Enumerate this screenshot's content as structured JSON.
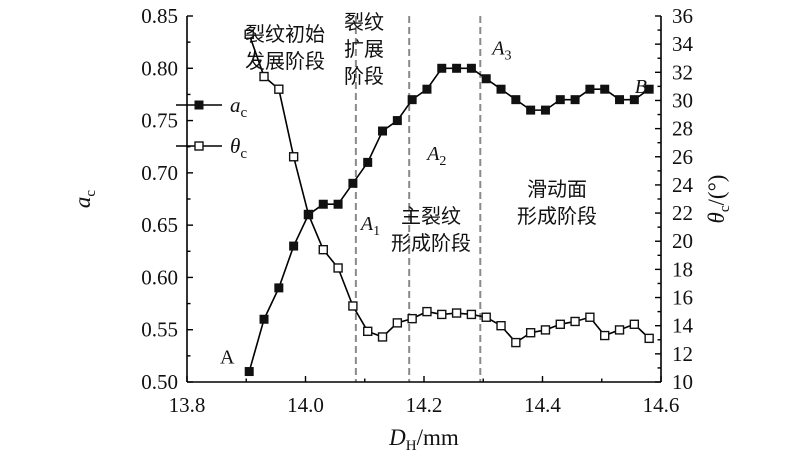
{
  "chart_data": {
    "type": "line",
    "xlabel": {
      "main": "D",
      "sub": "H",
      "unit": "/mm"
    },
    "ylabel_left": {
      "main": "a",
      "sub": "c"
    },
    "ylabel_right": {
      "main": "θ",
      "sub": "c",
      "unit": "/(°)"
    },
    "xlim": [
      13.8,
      14.6
    ],
    "ylim_left": [
      0.5,
      0.85
    ],
    "ylim_right": [
      10,
      36
    ],
    "x_ticks": [
      "13.8",
      "14.0",
      "14.2",
      "14.4",
      "14.6"
    ],
    "y_left_ticks": [
      "0.50",
      "0.55",
      "0.60",
      "0.65",
      "0.70",
      "0.75",
      "0.80",
      "0.85"
    ],
    "y_right_ticks": [
      "10",
      "12",
      "14",
      "16",
      "18",
      "20",
      "22",
      "24",
      "26",
      "28",
      "30",
      "32",
      "34",
      "36"
    ],
    "series": [
      {
        "name": "a",
        "sub": "c",
        "axis": "left",
        "marker": "filled-square",
        "x": [
          13.905,
          13.93,
          13.955,
          13.98,
          14.005,
          14.03,
          14.055,
          14.08,
          14.105,
          14.13,
          14.155,
          14.18,
          14.205,
          14.23,
          14.255,
          14.28,
          14.305,
          14.33,
          14.355,
          14.38,
          14.405,
          14.43,
          14.455,
          14.48,
          14.505,
          14.53,
          14.555,
          14.58
        ],
        "values": [
          0.51,
          0.56,
          0.59,
          0.63,
          0.66,
          0.67,
          0.67,
          0.69,
          0.71,
          0.74,
          0.75,
          0.77,
          0.78,
          0.8,
          0.8,
          0.8,
          0.79,
          0.78,
          0.77,
          0.76,
          0.76,
          0.77,
          0.77,
          0.78,
          0.78,
          0.77,
          0.77,
          0.78
        ]
      },
      {
        "name": "θ",
        "sub": "c",
        "axis": "right",
        "marker": "open-square",
        "x": [
          13.905,
          13.93,
          13.955,
          13.98,
          14.005,
          14.03,
          14.055,
          14.08,
          14.105,
          14.13,
          14.155,
          14.18,
          14.205,
          14.23,
          14.255,
          14.28,
          14.305,
          14.33,
          14.355,
          14.38,
          14.405,
          14.43,
          14.455,
          14.48,
          14.505,
          14.53,
          14.555,
          14.58
        ],
        "values": [
          34.7,
          31.7,
          30.8,
          26.0,
          21.9,
          19.4,
          18.1,
          15.4,
          13.6,
          13.2,
          14.2,
          14.5,
          15.0,
          14.8,
          14.9,
          14.8,
          14.6,
          14.0,
          12.8,
          13.5,
          13.7,
          14.1,
          14.3,
          14.6,
          13.3,
          13.7,
          14.1,
          13.1
        ]
      }
    ],
    "vlines": [
      14.085,
      14.175,
      14.295
    ],
    "point_labels": [
      {
        "main": "A",
        "sub": "",
        "x": 13.905,
        "y": 0.51
      },
      {
        "main": "A",
        "sub": "1",
        "x": 14.08,
        "y": 0.67
      },
      {
        "main": "A",
        "sub": "2",
        "x": 14.175,
        "y": 0.74
      },
      {
        "main": "A",
        "sub": "3",
        "x": 14.295,
        "y": 0.8
      },
      {
        "main": "B",
        "sub": "",
        "x": 14.6,
        "y": 0.78
      }
    ],
    "stage_labels": [
      {
        "lines": [
          "裂纹初始",
          "发展阶段"
        ]
      },
      {
        "lines": [
          "裂纹",
          "扩展",
          "阶段"
        ]
      },
      {
        "lines": [
          "主裂纹",
          "形成阶段"
        ]
      },
      {
        "lines": [
          "滑动面",
          "形成阶段"
        ]
      }
    ],
    "grid": false,
    "legend_position": "upper-left"
  }
}
